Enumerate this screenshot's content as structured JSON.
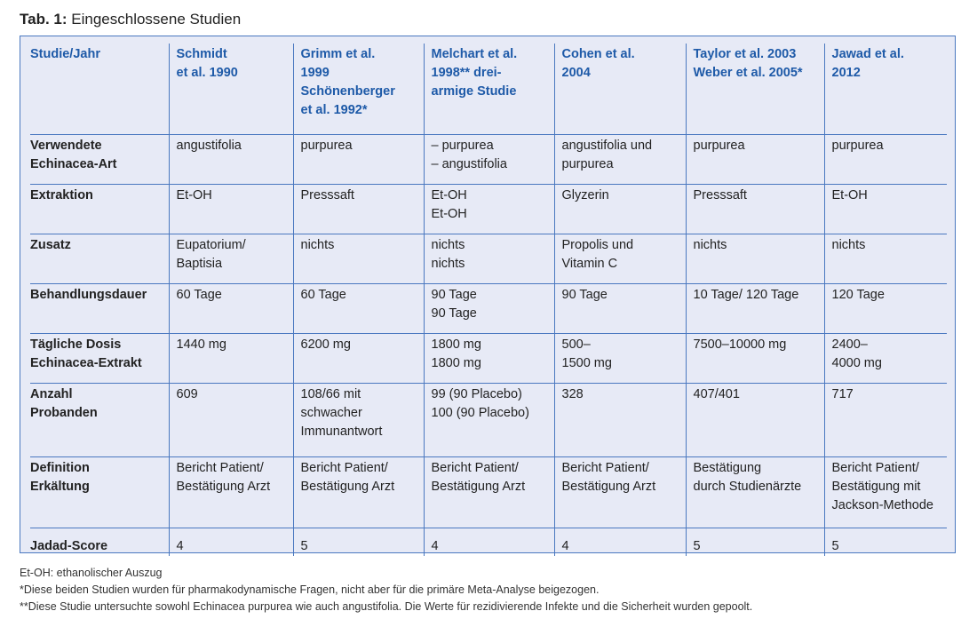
{
  "title": {
    "prefix": "Tab. 1:",
    "text": "Eingeschlossene Studien"
  },
  "header": [
    "Studie/Jahr",
    "Schmidt\net al. 1990",
    "Grimm et al.\n1999\nSchönenberger\net al. 1992*",
    "Melchart et al.\n1998** drei-\narmige Studie",
    "Cohen et al.\n2004",
    "Taylor et al. 2003\nWeber et al. 2005*",
    "Jawad et al.\n2012"
  ],
  "rows": [
    [
      "Verwendete\nEchinacea-Art",
      "angustifolia",
      "purpurea",
      "–  purpurea\n–  angustifolia",
      "angustifolia und\npurpurea",
      "purpurea",
      "purpurea"
    ],
    [
      "Extraktion",
      "Et-OH",
      "Presssaft",
      "Et-OH\nEt-OH",
      "Glyzerin",
      "Presssaft",
      "Et-OH"
    ],
    [
      "Zusatz",
      "Eupatorium/\nBaptisia",
      "nichts",
      "nichts\nnichts",
      "Propolis und\nVitamin C",
      "nichts",
      "nichts"
    ],
    [
      "Behandlungsdauer",
      "60 Tage",
      "60 Tage",
      "90 Tage\n90 Tage",
      "90 Tage",
      "10 Tage/ 120 Tage",
      "120 Tage"
    ],
    [
      "Tägliche Dosis\nEchinacea-Extrakt",
      "1440 mg",
      "6200 mg",
      "1800 mg\n1800 mg",
      "500–\n1500 mg",
      "7500–10000 mg",
      "2400–\n4000 mg"
    ],
    [
      "Anzahl\nProbanden",
      "609",
      "108/66 mit\nschwacher\nImmunantwort",
      "99 (90 Placebo)\n100 (90 Placebo)",
      "328",
      "407/401",
      "717"
    ],
    [
      "Definition\nErkältung",
      "Bericht Patient/\nBestätigung Arzt",
      "Bericht Patient/\nBestätigung Arzt",
      "Bericht Patient/\nBestätigung Arzt",
      "Bericht Patient/\nBestätigung Arzt",
      "Bestätigung\ndurch Studienärzte",
      "Bericht Patient/\nBestätigung mit\nJackson-Methode"
    ],
    [
      "Jadad-Score",
      "4",
      "5",
      "4",
      "4",
      "5",
      "5"
    ]
  ],
  "notes": [
    "Et-OH: ethanolischer Auszug",
    "*Diese beiden Studien wurden für pharmakodynamische Fragen, nicht aber für die primäre Meta-Analyse beigezogen.",
    "**Diese Studie untersuchte sowohl Echinacea purpurea wie auch angustifolia. Die Werte für rezidivierende Infekte und die Sicherheit wurden gepoolt."
  ]
}
